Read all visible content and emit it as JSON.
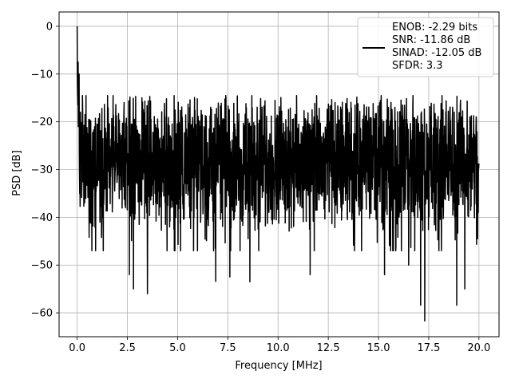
{
  "chart_data": {
    "type": "line",
    "title": "",
    "xlabel": "Frequency [MHz]",
    "ylabel": "PSD [dB]",
    "xlim": [
      -0.9,
      21.0
    ],
    "ylim": [
      -65,
      3
    ],
    "xticks": [
      0.0,
      2.5,
      5.0,
      7.5,
      10.0,
      12.5,
      15.0,
      17.5,
      20.0
    ],
    "xtick_labels": [
      "0.0",
      "2.5",
      "5.0",
      "7.5",
      "10.0",
      "12.5",
      "15.0",
      "17.5",
      "20.0"
    ],
    "yticks": [
      0,
      -10,
      -20,
      -30,
      -40,
      -50,
      -60
    ],
    "ytick_labels": [
      "0",
      "−10",
      "−20",
      "−30",
      "−40",
      "−50",
      "−60"
    ],
    "grid": true,
    "legend_position": "top-right",
    "legend_entries": [
      "ENOB: -2.29 bits",
      "SNR: -11.86 dB",
      "SINAD: -12.05 dB",
      "SFDR: 3.3"
    ],
    "series": [
      {
        "color": "#000000",
        "x_start": 0.0,
        "x_end": 20.0,
        "points": 2048,
        "baseline_db": -28,
        "max_db": 0,
        "min_db": -61.7,
        "spikes": [
          [
            0.0,
            0.0
          ],
          [
            0.05,
            -7.5
          ],
          [
            0.1,
            -10
          ],
          [
            0.15,
            -20
          ],
          [
            0.15,
            -37.7
          ],
          [
            0.6,
            -44.2
          ],
          [
            2.6,
            -52
          ],
          [
            2.8,
            -55
          ],
          [
            3.5,
            -56
          ],
          [
            6.9,
            -53.4
          ],
          [
            7.6,
            -52.5
          ],
          [
            8.6,
            -53.5
          ],
          [
            11.6,
            -52
          ],
          [
            15.3,
            -52
          ],
          [
            16.5,
            -50
          ],
          [
            17.1,
            -58.4
          ],
          [
            17.3,
            -61.7
          ],
          [
            18.9,
            -58.4
          ],
          [
            19.3,
            -55
          ]
        ]
      }
    ]
  }
}
